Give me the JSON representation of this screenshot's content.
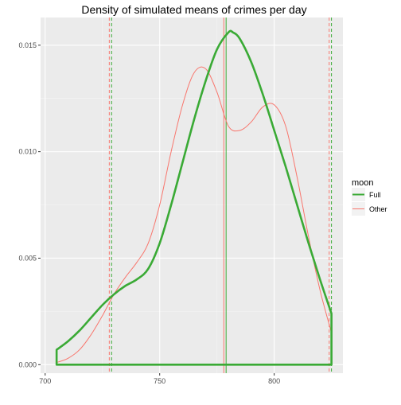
{
  "chart_data": {
    "type": "line",
    "title": "Density of simulated means of crimes per day",
    "xlabel": "",
    "ylabel": "",
    "xlim": [
      698,
      830
    ],
    "ylim": [
      -0.0004,
      0.0163
    ],
    "x_ticks": [
      700,
      750,
      800
    ],
    "y_ticks": [
      0.0,
      0.005,
      0.01,
      0.015
    ],
    "x_tick_labels": [
      "700",
      "750",
      "800"
    ],
    "y_tick_labels": [
      "0.000",
      "0.005",
      "0.010",
      "0.015"
    ],
    "grid": true,
    "legend": {
      "title": "moon",
      "position": "right"
    },
    "series": [
      {
        "name": "Full",
        "color": "#3aaa35",
        "x": [
          705,
          710,
          715,
          720,
          725,
          730,
          735,
          740,
          745,
          750,
          755,
          760,
          765,
          770,
          775,
          780,
          782,
          785,
          790,
          795,
          800,
          805,
          810,
          815,
          820,
          825
        ],
        "y": [
          0.0007,
          0.0011,
          0.0016,
          0.0022,
          0.0028,
          0.0033,
          0.0037,
          0.004,
          0.0045,
          0.0057,
          0.0075,
          0.0095,
          0.0115,
          0.0133,
          0.0148,
          0.0156,
          0.0156,
          0.0153,
          0.0142,
          0.0127,
          0.011,
          0.0093,
          0.0075,
          0.0057,
          0.004,
          0.0024
        ],
        "filled_baseline": true
      },
      {
        "name": "Other",
        "color": "#f8766d",
        "x": [
          705,
          710,
          715,
          720,
          725,
          730,
          735,
          740,
          745,
          750,
          755,
          760,
          765,
          770,
          775,
          780,
          785,
          790,
          795,
          800,
          805,
          810,
          815,
          820,
          825
        ],
        "y": [
          0.0001,
          0.0003,
          0.0007,
          0.0014,
          0.0023,
          0.0033,
          0.0041,
          0.0048,
          0.0057,
          0.0075,
          0.01,
          0.0122,
          0.0137,
          0.0139,
          0.0128,
          0.0112,
          0.011,
          0.0114,
          0.0121,
          0.0122,
          0.0112,
          0.0088,
          0.006,
          0.0035,
          0.0015
        ],
        "filled_baseline": false
      }
    ],
    "vlines": [
      {
        "series": "Full",
        "x": 729,
        "style": "dashed"
      },
      {
        "series": "Other",
        "x": 728,
        "style": "dashed"
      },
      {
        "series": "Full",
        "x": 779,
        "style": "solid"
      },
      {
        "series": "Other",
        "x": 778,
        "style": "solid"
      },
      {
        "series": "Full",
        "x": 825,
        "style": "dashed"
      },
      {
        "series": "Other",
        "x": 824,
        "style": "dashed"
      }
    ]
  }
}
